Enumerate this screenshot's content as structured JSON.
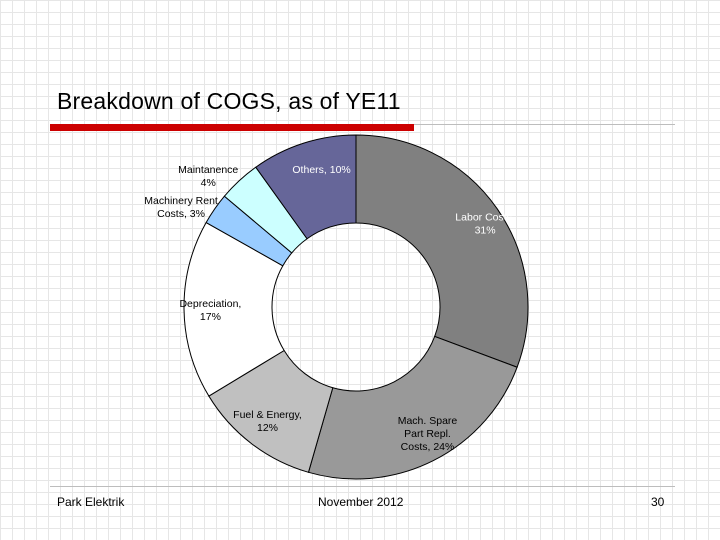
{
  "slide": {
    "title": "Breakdown of COGS, as of YE11",
    "accent_color": "#cc0000"
  },
  "footer": {
    "left": "Park Elektrik",
    "center": "November 2012",
    "page_number": "30"
  },
  "chart_data": {
    "type": "pie",
    "style": "donut",
    "slices": [
      {
        "label": "Labor Costs",
        "value": 31,
        "value_text": "31%",
        "color": "#808080",
        "label_lines": [
          "Labor Costs,",
          "31%"
        ],
        "label_color": "#ffffff"
      },
      {
        "label": "Mach. Spare Part Repl. Costs",
        "value": 24,
        "value_text": "24%",
        "color": "#999999",
        "label_lines": [
          "Mach. Spare",
          "Part Repl.",
          "Costs, 24%"
        ],
        "label_color": "#000000"
      },
      {
        "label": "Fuel & Energy",
        "value": 12,
        "value_text": "12%",
        "color": "#c0c0c0",
        "label_lines": [
          "Fuel & Energy,",
          "12%"
        ],
        "label_color": "#000000"
      },
      {
        "label": "Depreciation",
        "value": 17,
        "value_text": "17%",
        "color": "#ffffff",
        "label_lines": [
          "Depreciation,",
          "17%"
        ],
        "label_color": "#000000"
      },
      {
        "label": "Machinery Rent Costs",
        "value": 3,
        "value_text": "3%",
        "color": "#99ccff",
        "label_lines": [
          "Machinery Rent",
          "Costs, 3%"
        ],
        "label_color": "#000000"
      },
      {
        "label": "Maintanence",
        "value": 4,
        "value_text": "4%",
        "color": "#ccffff",
        "label_lines": [
          "Maintanence",
          "4%"
        ],
        "label_color": "#000000"
      },
      {
        "label": "Others",
        "value": 10,
        "value_text": "10%",
        "color": "#666699",
        "label_lines": [
          "Others, 10%"
        ],
        "label_color": "#ffffff"
      }
    ],
    "start_angle_deg": 0,
    "direction": "clockwise",
    "legend": "none"
  }
}
